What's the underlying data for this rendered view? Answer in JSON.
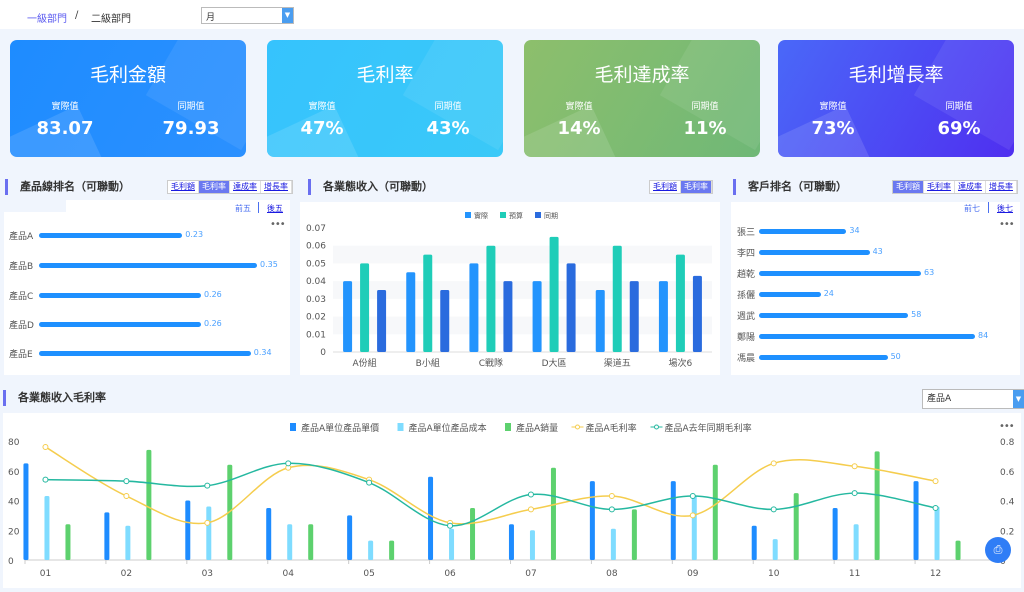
{
  "header": {
    "crumb1": "一級部門",
    "sep": "/",
    "crumb2": "二級部門",
    "period": "月"
  },
  "cards": [
    {
      "title": "毛利金額",
      "actual_label": "實際值",
      "actual": "83.07",
      "prior_label": "同期值",
      "prior": "79.93",
      "color": "#1e8cff"
    },
    {
      "title": "毛利率",
      "actual_label": "實際值",
      "actual": "47%",
      "prior_label": "同期值",
      "prior": "43%",
      "color": "#36c3fd"
    },
    {
      "title": "毛利達成率",
      "actual_label": "實際值",
      "actual": "14%",
      "prior_label": "同期值",
      "prior": "11%",
      "color": "#80bd72"
    },
    {
      "title": "毛利增長率",
      "actual_label": "實際值",
      "actual": "73%",
      "prior_label": "同期值",
      "prior": "69%",
      "color": "#4a55f0"
    }
  ],
  "product_rank": {
    "title": "產品線排名（可聯動）",
    "tabs": [
      "毛利額",
      "毛利率",
      "達成率",
      "增長率"
    ],
    "active": 1,
    "top": "前五",
    "bottom": "後五",
    "items": [
      {
        "name": "產品A",
        "value": 0.23
      },
      {
        "name": "產品B",
        "value": 0.35
      },
      {
        "name": "產品C",
        "value": 0.26
      },
      {
        "name": "產品D",
        "value": 0.26
      },
      {
        "name": "產品E",
        "value": 0.34
      }
    ]
  },
  "biz_income": {
    "title": "各業態收入（可聯動）",
    "tabs": [
      "毛利額",
      "毛利率"
    ],
    "active": 1
  },
  "customer_rank": {
    "title": "客戶排名（可聯動）",
    "tabs": [
      "毛利額",
      "毛利率",
      "達成率",
      "增長率"
    ],
    "active": 0,
    "top": "前七",
    "bottom": "後七",
    "items": [
      {
        "name": "張三",
        "value": 34
      },
      {
        "name": "李四",
        "value": 43
      },
      {
        "name": "趙乾",
        "value": 63
      },
      {
        "name": "孫儷",
        "value": 24
      },
      {
        "name": "週武",
        "value": 58
      },
      {
        "name": "鄭陽",
        "value": 84
      },
      {
        "name": "馮晨",
        "value": 50
      }
    ]
  },
  "margin_section": {
    "title": "各業態收入毛利率",
    "product": "產品A"
  },
  "chart_data": [
    {
      "type": "bar",
      "categories": [
        "A份組",
        "B小組",
        "C戰隊",
        "D大區",
        "渠道五",
        "場次6"
      ],
      "series": [
        {
          "name": "實際",
          "color": "#2394fd",
          "values": [
            0.04,
            0.045,
            0.05,
            0.04,
            0.035,
            0.04
          ]
        },
        {
          "name": "預算",
          "color": "#1fcdb8",
          "values": [
            0.05,
            0.055,
            0.06,
            0.065,
            0.06,
            0.055
          ]
        },
        {
          "name": "同期",
          "color": "#2a6bde",
          "values": [
            0.035,
            0.035,
            0.04,
            0.05,
            0.04,
            0.043
          ]
        }
      ],
      "ylim": [
        0,
        0.07
      ],
      "yticks": [
        "0",
        "0.01",
        "0.02",
        "0.03",
        "0.04",
        "0.05",
        "0.06",
        "0.07"
      ],
      "legend": "top-center"
    },
    {
      "type": "bar",
      "categories": [
        "01",
        "02",
        "03",
        "04",
        "05",
        "06",
        "07",
        "08",
        "09",
        "10",
        "11",
        "12"
      ],
      "yticks_left": [
        "0",
        "20",
        "40",
        "60",
        "80"
      ],
      "yticks_right": [
        "0",
        "0.2",
        "0.4",
        "0.6",
        "0.8"
      ],
      "ylim_left": [
        0,
        80
      ],
      "ylim_right": [
        0,
        0.8
      ],
      "legend": "top-center",
      "series": [
        {
          "name": "產品A單位產品單價",
          "kind": "bar",
          "axis": "left",
          "color": "#1e8cff",
          "values": [
            65,
            32,
            40,
            35,
            30,
            56,
            24,
            53,
            53,
            23,
            35,
            53
          ]
        },
        {
          "name": "產品A單位產品成本",
          "kind": "bar",
          "axis": "left",
          "color": "#7fdcff",
          "values": [
            43,
            23,
            36,
            24,
            13,
            21,
            20,
            21,
            43,
            14,
            24,
            36
          ]
        },
        {
          "name": "產品A銷量",
          "kind": "bar",
          "axis": "left",
          "color": "#5dd16e",
          "values": [
            24,
            74,
            64,
            24,
            13,
            35,
            62,
            34,
            64,
            45,
            73,
            13
          ]
        },
        {
          "name": "產品A毛利率",
          "kind": "line",
          "axis": "right",
          "color": "#f5cd4e",
          "values": [
            0.76,
            0.43,
            0.25,
            0.62,
            0.54,
            0.25,
            0.34,
            0.43,
            0.3,
            0.65,
            0.63,
            0.53
          ]
        },
        {
          "name": "產品A去年同期毛利率",
          "kind": "line",
          "axis": "right",
          "color": "#25b8a0",
          "values": [
            0.54,
            0.53,
            0.5,
            0.65,
            0.52,
            0.23,
            0.44,
            0.34,
            0.43,
            0.34,
            0.45,
            0.35
          ]
        }
      ]
    }
  ]
}
